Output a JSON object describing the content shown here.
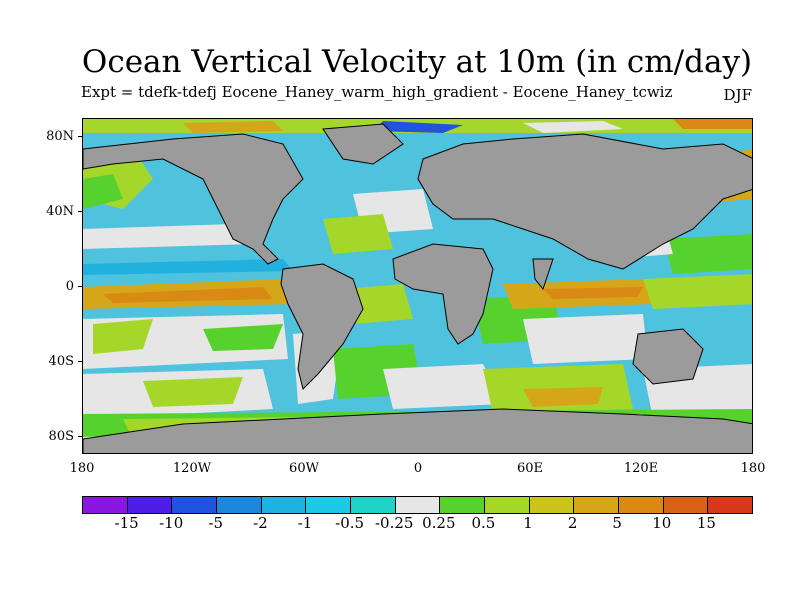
{
  "title": "Ocean Vertical Velocity at 10m (in cm/day)",
  "subtitle": "Expt = tdefk-tdefj Eocene_Haney_warm_high_gradient - Eocene_Haney_tcwiz",
  "season": "DJF",
  "lat_labels": [
    "80N",
    "40N",
    "0",
    "40S",
    "80S"
  ],
  "lon_labels": [
    "180",
    "120W",
    "60W",
    "0",
    "60E",
    "120E",
    "180"
  ],
  "colorbar": {
    "colors": [
      "#8a17e0",
      "#4d1ee6",
      "#1f53e0",
      "#1d87dc",
      "#21b1de",
      "#1fc8e6",
      "#1fd1c7",
      "#e6e6e6",
      "#56d12d",
      "#a5d72a",
      "#cbc41f",
      "#d6a61a",
      "#d98a14",
      "#d9621a",
      "#d63a1a"
    ],
    "labels": [
      "-15",
      "-10",
      "-5",
      "-2",
      "-1",
      "-0.5",
      "-0.25",
      "0.25",
      "0.5",
      "1",
      "2",
      "5",
      "10",
      "15"
    ]
  },
  "colors": {
    "land": "#9b9b9b",
    "ocean_base": "#4fc2de"
  }
}
